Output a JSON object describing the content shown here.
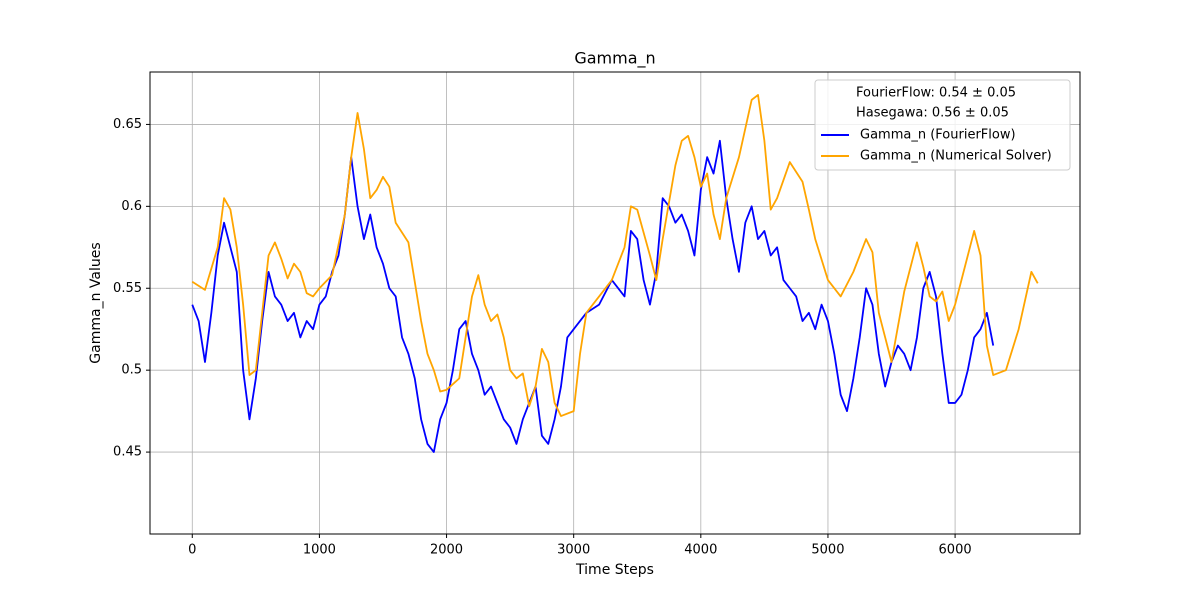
{
  "chart_data": {
    "type": "line",
    "title": "Gamma_n",
    "x_label": "Time Steps",
    "y_label": "Gamma_n Values",
    "legend_notes": [
      "FourierFlow: 0.54 ± 0.05",
      "Hasegawa: 0.56 ± 0.05"
    ],
    "legend": "upper right",
    "grid": true,
    "xlim": [
      -332.5,
      6982.5
    ],
    "xticks": [
      0,
      1000,
      2000,
      3000,
      4000,
      5000,
      6000
    ],
    "ylim": [
      0.4,
      0.682
    ],
    "yticks": [
      0.45,
      0.5,
      0.55,
      0.6,
      0.65
    ],
    "series": [
      {
        "name": "Gamma_n (FourierFlow)",
        "color": "#0000ff",
        "x": [
          0,
          50,
          100,
          150,
          200,
          250,
          300,
          350,
          400,
          450,
          500,
          550,
          600,
          650,
          700,
          750,
          800,
          850,
          900,
          950,
          1000,
          1050,
          1100,
          1150,
          1200,
          1250,
          1300,
          1350,
          1400,
          1450,
          1500,
          1550,
          1600,
          1650,
          1700,
          1750,
          1800,
          1850,
          1900,
          1950,
          2000,
          2050,
          2100,
          2150,
          2200,
          2250,
          2300,
          2350,
          2400,
          2450,
          2500,
          2550,
          2600,
          2650,
          2700,
          2750,
          2800,
          2850,
          2900,
          2950,
          3000,
          3100,
          3200,
          3300,
          3400,
          3450,
          3500,
          3550,
          3600,
          3650,
          3700,
          3750,
          3800,
          3850,
          3900,
          3950,
          4000,
          4050,
          4100,
          4150,
          4200,
          4250,
          4300,
          4350,
          4400,
          4450,
          4500,
          4550,
          4600,
          4650,
          4700,
          4750,
          4800,
          4850,
          4900,
          4950,
          5000,
          5050,
          5100,
          5150,
          5200,
          5250,
          5300,
          5350,
          5400,
          5450,
          5500,
          5550,
          5600,
          5650,
          5700,
          5750,
          5800,
          5850,
          5900,
          5950,
          6000,
          6050,
          6100,
          6150,
          6200,
          6250,
          6300
        ],
        "values": [
          0.54,
          0.53,
          0.505,
          0.535,
          0.57,
          0.59,
          0.575,
          0.56,
          0.5,
          0.47,
          0.495,
          0.53,
          0.56,
          0.545,
          0.54,
          0.53,
          0.535,
          0.52,
          0.53,
          0.525,
          0.54,
          0.545,
          0.56,
          0.57,
          0.595,
          0.63,
          0.6,
          0.58,
          0.595,
          0.575,
          0.565,
          0.55,
          0.545,
          0.52,
          0.51,
          0.495,
          0.47,
          0.455,
          0.45,
          0.47,
          0.48,
          0.5,
          0.525,
          0.53,
          0.51,
          0.5,
          0.485,
          0.49,
          0.48,
          0.47,
          0.465,
          0.455,
          0.47,
          0.48,
          0.49,
          0.46,
          0.455,
          0.47,
          0.49,
          0.52,
          0.525,
          0.535,
          0.54,
          0.555,
          0.545,
          0.585,
          0.58,
          0.555,
          0.54,
          0.56,
          0.605,
          0.6,
          0.59,
          0.595,
          0.585,
          0.57,
          0.61,
          0.63,
          0.62,
          0.64,
          0.605,
          0.58,
          0.56,
          0.59,
          0.6,
          0.58,
          0.585,
          0.57,
          0.575,
          0.555,
          0.55,
          0.545,
          0.53,
          0.535,
          0.525,
          0.54,
          0.53,
          0.51,
          0.485,
          0.475,
          0.495,
          0.52,
          0.55,
          0.54,
          0.51,
          0.49,
          0.505,
          0.515,
          0.51,
          0.5,
          0.52,
          0.55,
          0.56,
          0.545,
          0.51,
          0.48,
          0.48,
          0.485,
          0.5,
          0.52,
          0.525,
          0.535,
          0.515
        ]
      },
      {
        "name": "Gamma_n (Numerical Solver)",
        "color": "#ffa500",
        "x": [
          0,
          100,
          200,
          250,
          300,
          350,
          400,
          450,
          500,
          550,
          600,
          650,
          700,
          750,
          800,
          850,
          900,
          950,
          1000,
          1100,
          1200,
          1250,
          1300,
          1350,
          1400,
          1450,
          1500,
          1550,
          1600,
          1700,
          1800,
          1850,
          1900,
          1950,
          2000,
          2100,
          2200,
          2250,
          2300,
          2350,
          2400,
          2450,
          2500,
          2550,
          2600,
          2650,
          2700,
          2750,
          2800,
          2850,
          2900,
          3000,
          3050,
          3100,
          3200,
          3300,
          3400,
          3450,
          3500,
          3600,
          3650,
          3700,
          3800,
          3850,
          3900,
          3950,
          4000,
          4050,
          4100,
          4150,
          4200,
          4300,
          4400,
          4450,
          4500,
          4550,
          4600,
          4700,
          4800,
          4850,
          4900,
          5000,
          5100,
          5200,
          5300,
          5350,
          5400,
          5500,
          5600,
          5700,
          5750,
          5800,
          5850,
          5900,
          5950,
          6000,
          6100,
          6150,
          6200,
          6250,
          6300,
          6400,
          6500,
          6600,
          6650
        ],
        "values": [
          0.554,
          0.549,
          0.575,
          0.605,
          0.598,
          0.575,
          0.54,
          0.497,
          0.5,
          0.535,
          0.57,
          0.578,
          0.568,
          0.556,
          0.565,
          0.56,
          0.547,
          0.545,
          0.55,
          0.558,
          0.595,
          0.63,
          0.657,
          0.635,
          0.605,
          0.61,
          0.618,
          0.612,
          0.59,
          0.578,
          0.53,
          0.51,
          0.5,
          0.487,
          0.488,
          0.495,
          0.545,
          0.558,
          0.54,
          0.53,
          0.534,
          0.52,
          0.5,
          0.495,
          0.498,
          0.478,
          0.49,
          0.513,
          0.505,
          0.48,
          0.472,
          0.475,
          0.51,
          0.535,
          0.545,
          0.555,
          0.575,
          0.6,
          0.598,
          0.57,
          0.555,
          0.58,
          0.625,
          0.64,
          0.643,
          0.63,
          0.612,
          0.62,
          0.595,
          0.58,
          0.605,
          0.63,
          0.665,
          0.668,
          0.64,
          0.598,
          0.605,
          0.627,
          0.615,
          0.598,
          0.58,
          0.555,
          0.545,
          0.56,
          0.58,
          0.572,
          0.535,
          0.505,
          0.548,
          0.578,
          0.563,
          0.545,
          0.542,
          0.548,
          0.53,
          0.54,
          0.57,
          0.585,
          0.57,
          0.515,
          0.497,
          0.5,
          0.525,
          0.56,
          0.553
        ]
      }
    ]
  }
}
